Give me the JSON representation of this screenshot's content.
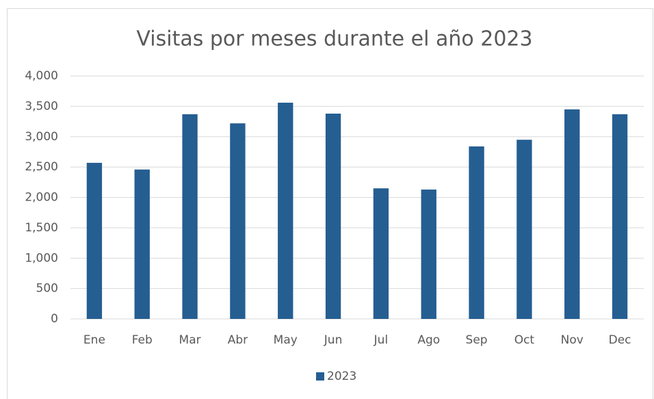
{
  "chart_data": {
    "type": "bar",
    "title": "Visitas por meses durante el año 2023",
    "categories": [
      "Ene",
      "Feb",
      "Mar",
      "Abr",
      "May",
      "Jun",
      "Jul",
      "Ago",
      "Sep",
      "Oct",
      "Nov",
      "Dec"
    ],
    "series": [
      {
        "name": "2023",
        "color": "#255e91",
        "values": [
          2570,
          2460,
          3370,
          3220,
          3560,
          3380,
          2150,
          2130,
          2840,
          2950,
          3450,
          3370
        ]
      }
    ],
    "ylim": [
      0,
      4000
    ],
    "yticks": [
      0,
      500,
      {
        "value": 1000,
        "label": "1,000"
      },
      {
        "value": 1500,
        "label": "1,500"
      },
      {
        "value": 2000,
        "label": "2,000"
      },
      {
        "value": 2500,
        "label": "2,500"
      },
      {
        "value": 3000,
        "label": "3,000"
      },
      {
        "value": 3500,
        "label": "3,500"
      },
      {
        "value": 4000,
        "label": "4,000"
      }
    ],
    "grid": true,
    "legend": "bottom"
  }
}
